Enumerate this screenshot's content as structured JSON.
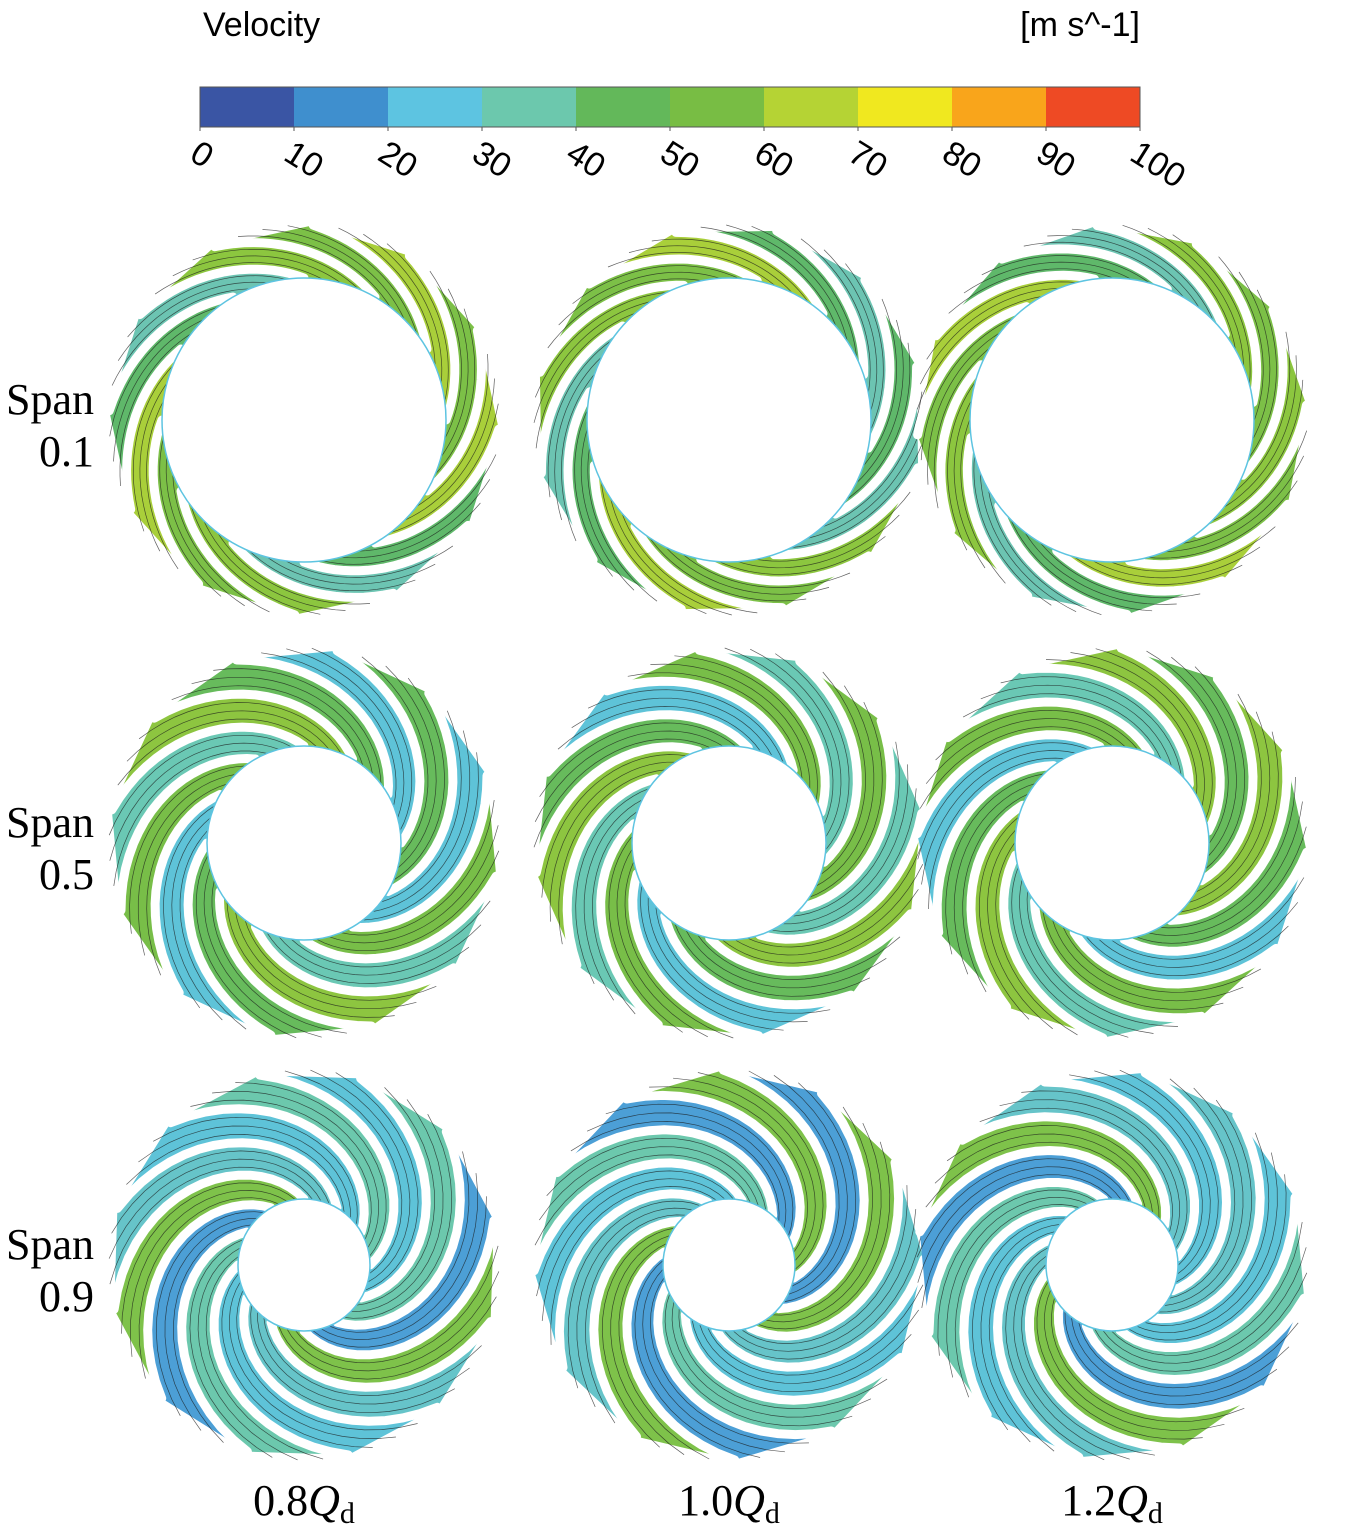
{
  "colorbar": {
    "title": "Velocity",
    "unit": "[m s^-1]",
    "range": [
      0,
      100
    ],
    "ticks": [
      0,
      10,
      20,
      30,
      40,
      50,
      60,
      70,
      80,
      90,
      100
    ],
    "colors": [
      "#3a55a4",
      "#3f8fce",
      "#5dc4e1",
      "#6cc8ad",
      "#63b85a",
      "#78bd44",
      "#b5d334",
      "#f0e81f",
      "#f9a51b",
      "#ee4a24"
    ]
  },
  "rows": [
    {
      "label": [
        "Span",
        "0.1"
      ]
    },
    {
      "label": [
        "Span",
        "0.5"
      ]
    },
    {
      "label": [
        "Span",
        "0.9"
      ]
    }
  ],
  "columns": [
    {
      "label": {
        "coefficient": "0.8",
        "symbol": "Q",
        "subscript": "d"
      }
    },
    {
      "label": {
        "coefficient": "1.0",
        "symbol": "Q",
        "subscript": "d"
      }
    },
    {
      "label": {
        "coefficient": "1.2",
        "symbol": "Q",
        "subscript": "d"
      }
    }
  ]
}
